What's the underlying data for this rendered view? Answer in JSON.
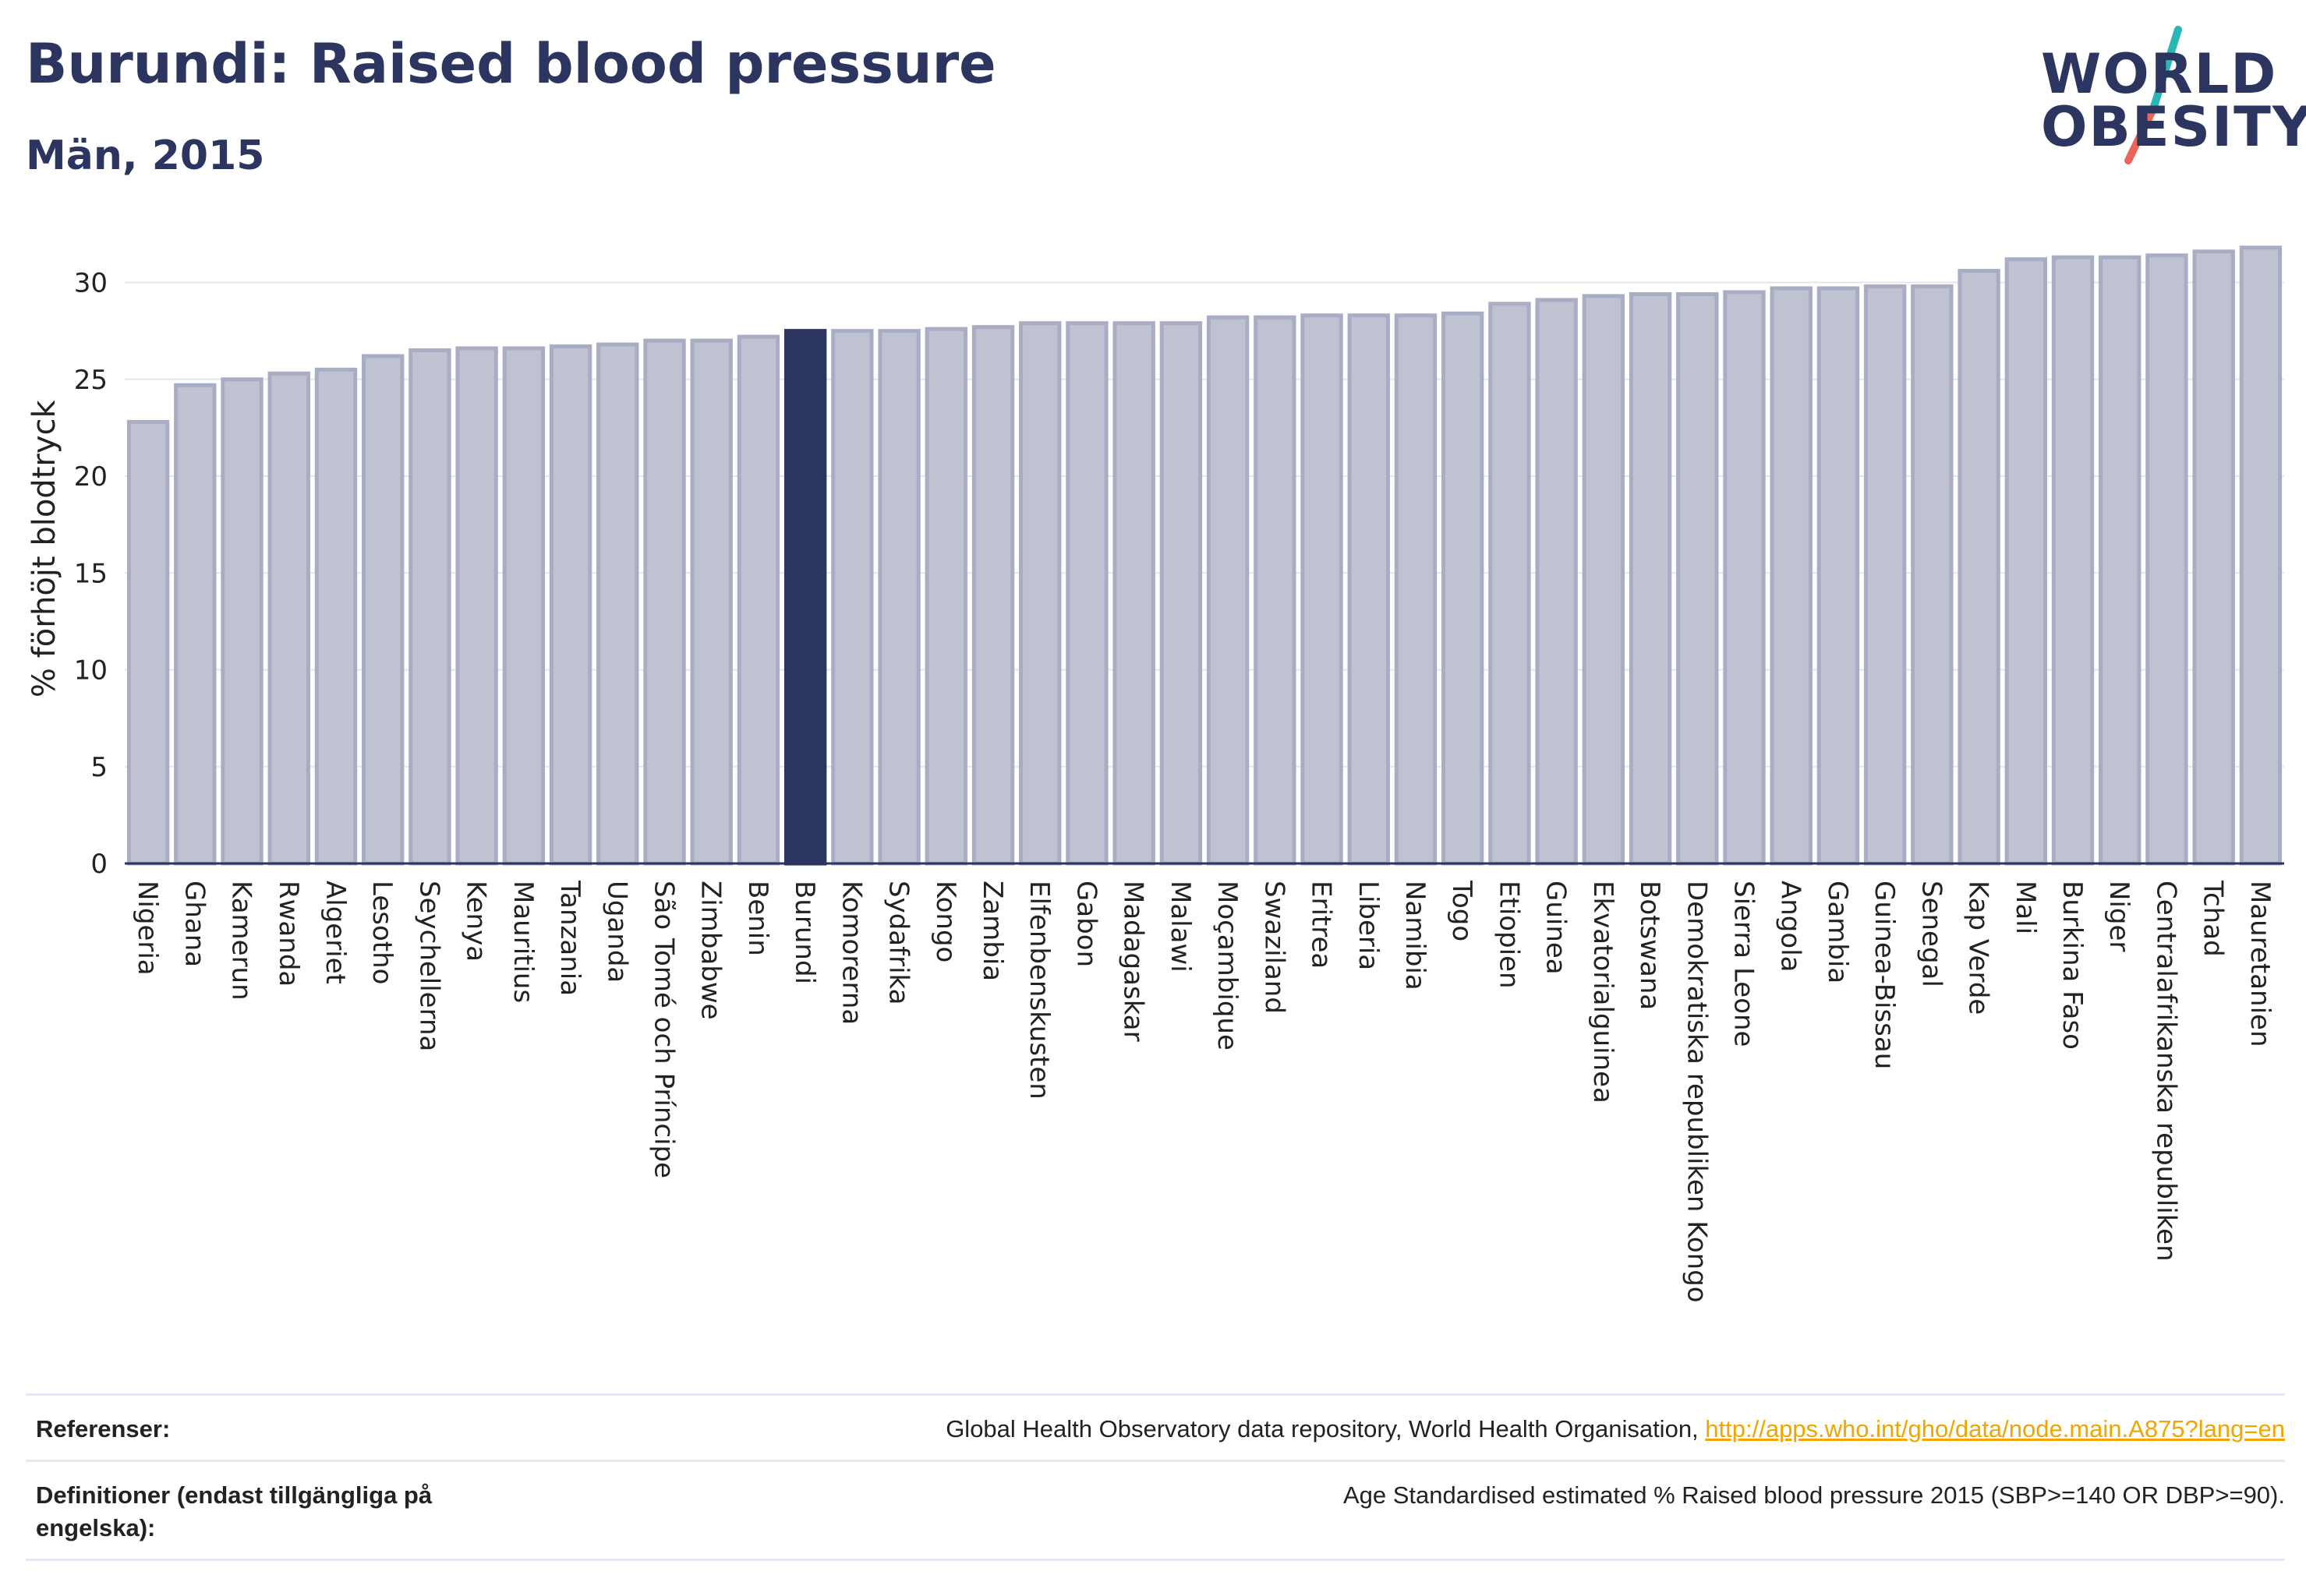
{
  "header": {
    "title": "Burundi: Raised blood pressure",
    "subtitle": "Män, 2015"
  },
  "logo": {
    "line1": "WORLD",
    "line2": "OBESITY",
    "colors": {
      "text": "#2c3560",
      "slash_top": "#2bb6b5",
      "slash_bottom": "#e8665a"
    }
  },
  "colors": {
    "bar": "#bfc2d1",
    "bar_border": "#a9adc4",
    "highlight": "#2c3560",
    "axis": "#2c3560",
    "grid": "#e4e6ee",
    "link": "#f0a500"
  },
  "chart_data": {
    "type": "bar",
    "title": "",
    "xlabel": "",
    "ylabel": "% förhöjt blodtryck",
    "ylim": [
      0,
      32.5
    ],
    "yticks": [
      0,
      5,
      10,
      15,
      20,
      25,
      30
    ],
    "grid": true,
    "highlight": "Burundi",
    "categories": [
      "Nigeria",
      "Ghana",
      "Kamerun",
      "Rwanda",
      "Algeriet",
      "Lesotho",
      "Seychellerna",
      "Kenya",
      "Mauritius",
      "Tanzania",
      "Uganda",
      "São Tomé och Príncipe",
      "Zimbabwe",
      "Benin",
      "Burundi",
      "Komorerna",
      "Sydafrika",
      "Kongo",
      "Zambia",
      "Elfenbenskusten",
      "Gabon",
      "Madagaskar",
      "Malawi",
      "Moçambique",
      "Swaziland",
      "Eritrea",
      "Liberia",
      "Namibia",
      "Togo",
      "Etiopien",
      "Guinea",
      "Ekvatorialguinea",
      "Botswana",
      "Demokratiska republiken Kongo",
      "Sierra Leone",
      "Angola",
      "Gambia",
      "Guinea-Bissau",
      "Senegal",
      "Kap Verde",
      "Mali",
      "Burkina Faso",
      "Niger",
      "Centralafrikanska republiken",
      "Tchad",
      "Mauretanien"
    ],
    "values": [
      22.8,
      24.7,
      25.0,
      25.3,
      25.5,
      26.2,
      26.5,
      26.6,
      26.6,
      26.7,
      26.8,
      27.0,
      27.0,
      27.2,
      27.5,
      27.5,
      27.5,
      27.6,
      27.7,
      27.9,
      27.9,
      27.9,
      27.9,
      28.2,
      28.2,
      28.3,
      28.3,
      28.3,
      28.4,
      28.9,
      29.1,
      29.3,
      29.4,
      29.4,
      29.5,
      29.7,
      29.7,
      29.8,
      29.8,
      30.6,
      31.2,
      31.3,
      31.3,
      31.4,
      31.6,
      31.8
    ]
  },
  "footer": {
    "references_label": "Referenser:",
    "references_text": "Global Health Observatory data repository, World Health Organisation, ",
    "references_link": "http://apps.who.int/gho/data/node.main.A875?lang=en",
    "definitions_label": "Definitioner (endast tillgängliga på engelska):",
    "definitions_text": "Age Standardised estimated % Raised blood pressure 2015 (SBP>=140 OR DBP>=90)."
  }
}
